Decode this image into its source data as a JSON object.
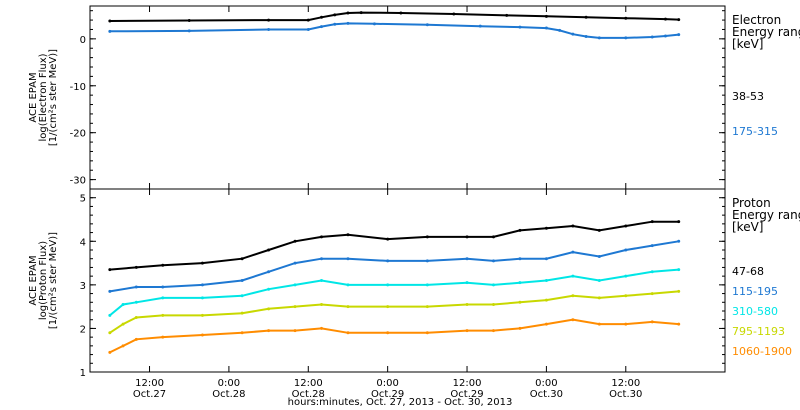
{
  "chart_data": [
    {
      "type": "line",
      "panel": "electron",
      "ylabel_lines": [
        "ACE EPAM",
        "log(Electron Flux)",
        "[1/(cm²s ster MeV)]"
      ],
      "ylim": [
        -32,
        7
      ],
      "yticks": [
        0,
        -10,
        -20,
        -30
      ],
      "legend_title_lines": [
        "Electron",
        "Energy ranges",
        "[keV]"
      ],
      "series": [
        {
          "name": "38-53",
          "color": "#000000",
          "points": [
            [
              6,
              3.8
            ],
            [
              18,
              3.9
            ],
            [
              30,
              4.0
            ],
            [
              36,
              4.0
            ],
            [
              38,
              4.6
            ],
            [
              40,
              5.1
            ],
            [
              42,
              5.5
            ],
            [
              44,
              5.6
            ],
            [
              50,
              5.5
            ],
            [
              58,
              5.3
            ],
            [
              66,
              5.0
            ],
            [
              72,
              4.8
            ],
            [
              78,
              4.6
            ],
            [
              84,
              4.4
            ],
            [
              90,
              4.2
            ],
            [
              92,
              4.1
            ]
          ]
        },
        {
          "name": "175-315",
          "color": "#1e78d2",
          "points": [
            [
              6,
              1.6
            ],
            [
              18,
              1.7
            ],
            [
              30,
              2.0
            ],
            [
              36,
              2.0
            ],
            [
              38,
              2.6
            ],
            [
              40,
              3.1
            ],
            [
              42,
              3.3
            ],
            [
              46,
              3.2
            ],
            [
              54,
              3.0
            ],
            [
              62,
              2.7
            ],
            [
              68,
              2.5
            ],
            [
              72,
              2.3
            ],
            [
              74,
              1.8
            ],
            [
              76,
              1.0
            ],
            [
              78,
              0.5
            ],
            [
              80,
              0.2
            ],
            [
              84,
              0.2
            ],
            [
              88,
              0.4
            ],
            [
              90,
              0.6
            ],
            [
              92,
              0.9
            ]
          ]
        }
      ]
    },
    {
      "type": "line",
      "panel": "proton",
      "ylabel_lines": [
        "ACE EPAM",
        "log(Proton Flux)",
        "[1/(cm²s ster MeV)]"
      ],
      "ylim": [
        1,
        5.2
      ],
      "yticks": [
        1,
        2,
        3,
        4,
        5
      ],
      "legend_title_lines": [
        "Proton",
        "Energy ranges",
        "[keV]"
      ],
      "series": [
        {
          "name": "47-68",
          "color": "#000000",
          "points": [
            [
              6,
              3.35
            ],
            [
              10,
              3.4
            ],
            [
              14,
              3.45
            ],
            [
              20,
              3.5
            ],
            [
              26,
              3.6
            ],
            [
              30,
              3.8
            ],
            [
              34,
              4.0
            ],
            [
              38,
              4.1
            ],
            [
              42,
              4.15
            ],
            [
              48,
              4.05
            ],
            [
              54,
              4.1
            ],
            [
              60,
              4.1
            ],
            [
              64,
              4.1
            ],
            [
              68,
              4.25
            ],
            [
              72,
              4.3
            ],
            [
              76,
              4.35
            ],
            [
              80,
              4.25
            ],
            [
              84,
              4.35
            ],
            [
              88,
              4.45
            ],
            [
              92,
              4.45
            ]
          ]
        },
        {
          "name": "115-195",
          "color": "#1e78d2",
          "points": [
            [
              6,
              2.85
            ],
            [
              10,
              2.95
            ],
            [
              14,
              2.95
            ],
            [
              20,
              3.0
            ],
            [
              26,
              3.1
            ],
            [
              30,
              3.3
            ],
            [
              34,
              3.5
            ],
            [
              38,
              3.6
            ],
            [
              42,
              3.6
            ],
            [
              48,
              3.55
            ],
            [
              54,
              3.55
            ],
            [
              60,
              3.6
            ],
            [
              64,
              3.55
            ],
            [
              68,
              3.6
            ],
            [
              72,
              3.6
            ],
            [
              76,
              3.75
            ],
            [
              80,
              3.65
            ],
            [
              84,
              3.8
            ],
            [
              88,
              3.9
            ],
            [
              92,
              4.0
            ]
          ]
        },
        {
          "name": "310-580",
          "color": "#00e6e6",
          "points": [
            [
              6,
              2.3
            ],
            [
              8,
              2.55
            ],
            [
              10,
              2.6
            ],
            [
              14,
              2.7
            ],
            [
              20,
              2.7
            ],
            [
              26,
              2.75
            ],
            [
              30,
              2.9
            ],
            [
              34,
              3.0
            ],
            [
              38,
              3.1
            ],
            [
              42,
              3.0
            ],
            [
              48,
              3.0
            ],
            [
              54,
              3.0
            ],
            [
              60,
              3.05
            ],
            [
              64,
              3.0
            ],
            [
              68,
              3.05
            ],
            [
              72,
              3.1
            ],
            [
              76,
              3.2
            ],
            [
              80,
              3.1
            ],
            [
              84,
              3.2
            ],
            [
              88,
              3.3
            ],
            [
              92,
              3.35
            ]
          ]
        },
        {
          "name": "795-1193",
          "color": "#c8d800",
          "points": [
            [
              6,
              1.9
            ],
            [
              8,
              2.1
            ],
            [
              10,
              2.25
            ],
            [
              14,
              2.3
            ],
            [
              20,
              2.3
            ],
            [
              26,
              2.35
            ],
            [
              30,
              2.45
            ],
            [
              34,
              2.5
            ],
            [
              38,
              2.55
            ],
            [
              42,
              2.5
            ],
            [
              48,
              2.5
            ],
            [
              54,
              2.5
            ],
            [
              60,
              2.55
            ],
            [
              64,
              2.55
            ],
            [
              68,
              2.6
            ],
            [
              72,
              2.65
            ],
            [
              76,
              2.75
            ],
            [
              80,
              2.7
            ],
            [
              84,
              2.75
            ],
            [
              88,
              2.8
            ],
            [
              92,
              2.85
            ]
          ]
        },
        {
          "name": "1060-1900",
          "color": "#ff8c00",
          "points": [
            [
              6,
              1.45
            ],
            [
              8,
              1.6
            ],
            [
              10,
              1.75
            ],
            [
              14,
              1.8
            ],
            [
              20,
              1.85
            ],
            [
              26,
              1.9
            ],
            [
              30,
              1.95
            ],
            [
              34,
              1.95
            ],
            [
              38,
              2.0
            ],
            [
              42,
              1.9
            ],
            [
              48,
              1.9
            ],
            [
              54,
              1.9
            ],
            [
              60,
              1.95
            ],
            [
              64,
              1.95
            ],
            [
              68,
              2.0
            ],
            [
              72,
              2.1
            ],
            [
              76,
              2.2
            ],
            [
              80,
              2.1
            ],
            [
              84,
              2.1
            ],
            [
              88,
              2.15
            ],
            [
              92,
              2.1
            ]
          ]
        }
      ]
    }
  ],
  "x_axis": {
    "xlim": [
      3,
      99
    ],
    "xlabel": "hours:minutes, Oct. 27, 2013 - Oct. 30, 2013",
    "ticks": [
      {
        "x": 12,
        "time": "12:00",
        "date": "Oct.27"
      },
      {
        "x": 24,
        "time": "0:00",
        "date": "Oct.28"
      },
      {
        "x": 36,
        "time": "12:00",
        "date": "Oct.28"
      },
      {
        "x": 48,
        "time": "0:00",
        "date": "Oct.29"
      },
      {
        "x": 60,
        "time": "12:00",
        "date": "Oct.29"
      },
      {
        "x": 72,
        "time": "0:00",
        "date": "Oct.30"
      },
      {
        "x": 84,
        "time": "12:00",
        "date": "Oct.30"
      }
    ]
  }
}
